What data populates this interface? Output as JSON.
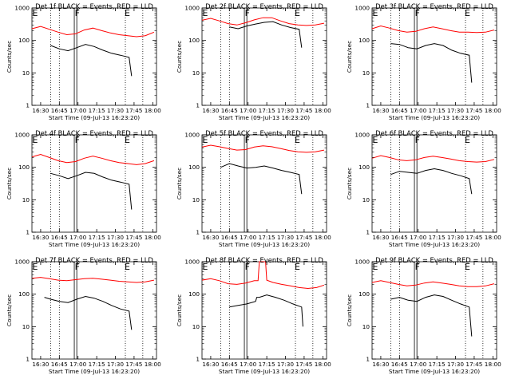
{
  "chart_data": {
    "type": "line",
    "y_scale": "log",
    "ylim": [
      1,
      1000
    ],
    "xlim": [
      "16:23:20",
      "18:03:20"
    ],
    "x_ticks": [
      "16:30",
      "16:45",
      "17:00",
      "17:15",
      "17:30",
      "17:45",
      "18:00"
    ],
    "y_ticks": [
      "1",
      "10",
      "100",
      "1000"
    ],
    "ylabel": "Counts/sec",
    "xlabel": "Start Time (09-Jul-13 16:23:20)",
    "colors": {
      "events": "#000000",
      "lld": "#ff0000"
    },
    "markers": [
      {
        "label": "E",
        "time": "16:24"
      },
      {
        "label": "F",
        "time": "16:58"
      },
      {
        "label": "E",
        "time": "17:38"
      }
    ],
    "time_shading": {
      "vlines_dotted": [
        "16:38",
        "16:45",
        "17:38",
        "17:52"
      ],
      "vlines_solid": [
        "16:57",
        "16:59"
      ]
    },
    "panels": [
      {
        "title": "Det 1f BLACK = Events, RED = LLD",
        "series": [
          {
            "name": "Events",
            "x": [
              "16:38",
              "16:45",
              "16:52",
              "16:59",
              "17:06",
              "17:13",
              "17:20",
              "17:27",
              "17:34",
              "17:41",
              "17:43"
            ],
            "values": [
              70,
              55,
              48,
              60,
              75,
              65,
              50,
              40,
              35,
              30,
              8
            ]
          },
          {
            "name": "LLD",
            "x": [
              "16:23",
              "16:30",
              "16:37",
              "16:44",
              "16:51",
              "16:58",
              "17:05",
              "17:12",
              "17:19",
              "17:26",
              "17:33",
              "17:40",
              "17:47",
              "17:54",
              "18:01"
            ],
            "values": [
              230,
              270,
              220,
              180,
              150,
              160,
              210,
              240,
              200,
              170,
              150,
              140,
              130,
              140,
              180
            ]
          }
        ]
      },
      {
        "title": "Det 2f BLACK = Events, RED = LLD",
        "series": [
          {
            "name": "Events",
            "x": [
              "16:45",
              "16:52",
              "16:59",
              "17:06",
              "17:13",
              "17:20",
              "17:27",
              "17:34",
              "17:41",
              "17:43"
            ],
            "values": [
              260,
              230,
              280,
              320,
              360,
              380,
              300,
              250,
              220,
              60
            ]
          },
          {
            "name": "LLD",
            "x": [
              "16:23",
              "16:30",
              "16:37",
              "16:44",
              "16:51",
              "16:58",
              "17:05",
              "17:12",
              "17:19",
              "17:26",
              "17:33",
              "17:40",
              "17:47",
              "17:54",
              "18:01"
            ],
            "values": [
              420,
              480,
              400,
              330,
              300,
              350,
              430,
              500,
              500,
              400,
              330,
              300,
              290,
              300,
              340
            ]
          }
        ]
      },
      {
        "title": "Det 3f BLACK = Events, RED = LLD",
        "series": [
          {
            "name": "Events",
            "x": [
              "16:38",
              "16:45",
              "16:52",
              "16:59",
              "17:06",
              "17:13",
              "17:20",
              "17:27",
              "17:34",
              "17:41",
              "17:43"
            ],
            "values": [
              80,
              75,
              60,
              55,
              70,
              80,
              70,
              50,
              40,
              35,
              5
            ]
          },
          {
            "name": "LLD",
            "x": [
              "16:23",
              "16:30",
              "16:37",
              "16:44",
              "16:51",
              "16:58",
              "17:05",
              "17:12",
              "17:19",
              "17:26",
              "17:33",
              "17:40",
              "17:47",
              "17:54",
              "18:01"
            ],
            "values": [
              230,
              280,
              240,
              200,
              180,
              190,
              230,
              260,
              230,
              200,
              180,
              180,
              175,
              180,
              210
            ]
          }
        ]
      },
      {
        "title": "Det 4f BLACK = Events, RED = LLD",
        "series": [
          {
            "name": "Events",
            "x": [
              "16:38",
              "16:45",
              "16:52",
              "16:59",
              "17:06",
              "17:13",
              "17:20",
              "17:27",
              "17:34",
              "17:41",
              "17:43"
            ],
            "values": [
              65,
              55,
              45,
              55,
              70,
              65,
              50,
              40,
              35,
              30,
              5
            ]
          },
          {
            "name": "LLD",
            "x": [
              "16:23",
              "16:30",
              "16:37",
              "16:44",
              "16:51",
              "16:58",
              "17:05",
              "17:12",
              "17:19",
              "17:26",
              "17:33",
              "17:40",
              "17:47",
              "17:54",
              "18:01"
            ],
            "values": [
              210,
              250,
              200,
              160,
              140,
              150,
              190,
              220,
              190,
              160,
              140,
              130,
              120,
              130,
              160
            ]
          }
        ]
      },
      {
        "title": "Det 5f BLACK = Events, RED = LLD",
        "series": [
          {
            "name": "Events",
            "x": [
              "16:38",
              "16:45",
              "16:52",
              "16:59",
              "17:06",
              "17:13",
              "17:20",
              "17:27",
              "17:34",
              "17:41",
              "17:43"
            ],
            "values": [
              100,
              130,
              110,
              95,
              100,
              110,
              95,
              80,
              70,
              60,
              15
            ]
          },
          {
            "name": "LLD",
            "x": [
              "16:23",
              "16:30",
              "16:37",
              "16:44",
              "16:51",
              "16:58",
              "17:05",
              "17:12",
              "17:19",
              "17:26",
              "17:33",
              "17:40",
              "17:47",
              "17:54",
              "18:01"
            ],
            "values": [
              420,
              480,
              430,
              380,
              340,
              350,
              420,
              460,
              430,
              380,
              330,
              300,
              290,
              300,
              340
            ]
          }
        ]
      },
      {
        "title": "Det 6f BLACK = Events, RED = LLD",
        "series": [
          {
            "name": "Events",
            "x": [
              "16:38",
              "16:45",
              "16:52",
              "16:59",
              "17:06",
              "17:13",
              "17:20",
              "17:27",
              "17:34",
              "17:41",
              "17:43"
            ],
            "values": [
              60,
              75,
              70,
              65,
              80,
              90,
              80,
              65,
              55,
              45,
              15
            ]
          },
          {
            "name": "LLD",
            "x": [
              "16:23",
              "16:30",
              "16:37",
              "16:44",
              "16:51",
              "16:58",
              "17:05",
              "17:12",
              "17:19",
              "17:26",
              "17:33",
              "17:40",
              "17:47",
              "17:54",
              "18:01"
            ],
            "values": [
              190,
              230,
              200,
              170,
              160,
              170,
              200,
              220,
              200,
              180,
              160,
              150,
              145,
              150,
              175
            ]
          }
        ]
      },
      {
        "title": "Det 7f BLACK = Events, RED = LLD",
        "series": [
          {
            "name": "Events",
            "x": [
              "16:33",
              "16:38",
              "16:45",
              "16:52",
              "16:59",
              "17:06",
              "17:13",
              "17:20",
              "17:27",
              "17:34",
              "17:41",
              "17:43"
            ],
            "values": [
              80,
              70,
              60,
              55,
              70,
              85,
              75,
              60,
              45,
              35,
              30,
              8
            ]
          },
          {
            "name": "LLD",
            "x": [
              "16:23",
              "16:30",
              "16:37",
              "16:44",
              "16:51",
              "16:58",
              "17:05",
              "17:12",
              "17:19",
              "17:26",
              "17:33",
              "17:40",
              "17:47",
              "17:54",
              "18:01"
            ],
            "values": [
              310,
              330,
              300,
              270,
              260,
              280,
              300,
              310,
              290,
              270,
              250,
              240,
              230,
              240,
              270
            ]
          }
        ]
      },
      {
        "title": "Det 8f BLACK = Events, RED = LLD",
        "series": [
          {
            "name": "Events",
            "x": [
              "16:45",
              "16:52",
              "16:59",
              "17:06",
              "17:07",
              "17:09",
              "17:15",
              "17:22",
              "17:29",
              "17:36",
              "17:43",
              "17:44"
            ],
            "values": [
              40,
              45,
              50,
              60,
              80,
              80,
              95,
              80,
              65,
              50,
              40,
              10
            ]
          },
          {
            "name": "LLD",
            "x": [
              "16:23",
              "16:30",
              "16:37",
              "16:44",
              "16:51",
              "16:58",
              "17:05",
              "17:08",
              "17:09",
              "17:14",
              "17:15",
              "17:20",
              "17:27",
              "17:34",
              "17:41",
              "17:48",
              "17:55",
              "18:01"
            ],
            "values": [
              270,
              300,
              260,
              210,
              200,
              220,
              260,
              260,
              1000,
              1000,
              270,
              230,
              200,
              180,
              160,
              150,
              160,
              190
            ]
          }
        ]
      },
      {
        "title": "Det 9f BLACK = Events, RED = LLD",
        "series": [
          {
            "name": "Events",
            "x": [
              "16:38",
              "16:45",
              "16:52",
              "16:59",
              "17:06",
              "17:13",
              "17:20",
              "17:27",
              "17:34",
              "17:41",
              "17:43"
            ],
            "values": [
              70,
              80,
              65,
              60,
              80,
              95,
              85,
              65,
              50,
              40,
              5
            ]
          },
          {
            "name": "LLD",
            "x": [
              "16:23",
              "16:30",
              "16:37",
              "16:44",
              "16:51",
              "16:58",
              "17:05",
              "17:12",
              "17:19",
              "17:26",
              "17:33",
              "17:40",
              "17:47",
              "17:54",
              "18:01"
            ],
            "values": [
              230,
              260,
              230,
              200,
              180,
              190,
              220,
              240,
              220,
              200,
              180,
              170,
              170,
              180,
              210
            ]
          }
        ]
      }
    ]
  }
}
